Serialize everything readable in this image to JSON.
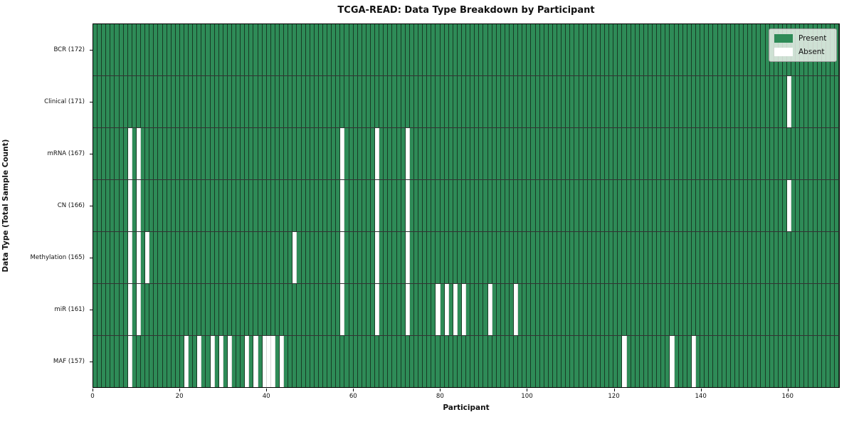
{
  "title": "TCGA-READ: Data Type Breakdown by Participant",
  "x_axis": {
    "label": "Participant",
    "ticks": [
      0,
      20,
      40,
      60,
      80,
      100,
      120,
      140,
      160
    ],
    "range": [
      0,
      172
    ]
  },
  "y_axis": {
    "label": "Data Type (Total Sample Count)"
  },
  "legend": {
    "entries": [
      {
        "label": "Present",
        "color_key": "present"
      },
      {
        "label": "Absent",
        "color_key": "absent"
      }
    ]
  },
  "colors": {
    "present": "#2e8b57",
    "absent": "#ffffff",
    "cell_edge": "rgba(20,45,28,0.85)",
    "absent_edge": "#d8d8d8",
    "row_divider": "rgba(0,0,0,0.8)",
    "plot_border": "#000000",
    "legend_bg": "rgba(234,240,234,0.85)",
    "legend_border": "#9a9a9a"
  },
  "chart_data": {
    "type": "heatmap",
    "n_participants": 172,
    "x_range": [
      0,
      172
    ],
    "legend_position": "upper right",
    "grid": "cell-edges",
    "cell_states": {
      "present": 1,
      "absent": 0
    },
    "rows": [
      {
        "label": "BCR (172)",
        "data_type": "BCR",
        "total_samples": 172,
        "absent_participants": []
      },
      {
        "label": "Clinical (171)",
        "data_type": "Clinical",
        "total_samples": 171,
        "absent_participants": [
          160
        ]
      },
      {
        "label": "mRNA (167)",
        "data_type": "mRNA",
        "total_samples": 167,
        "absent_participants": [
          8,
          10,
          57,
          65,
          72
        ]
      },
      {
        "label": "CN (166)",
        "data_type": "CN",
        "total_samples": 166,
        "absent_participants": [
          8,
          10,
          57,
          65,
          72,
          160
        ]
      },
      {
        "label": "Methylation (165)",
        "data_type": "Methylation",
        "total_samples": 165,
        "absent_participants": [
          8,
          10,
          12,
          46,
          57,
          65,
          72
        ]
      },
      {
        "label": "miR (161)",
        "data_type": "miR",
        "total_samples": 161,
        "absent_participants": [
          8,
          10,
          57,
          65,
          72,
          79,
          81,
          83,
          85,
          91,
          97
        ]
      },
      {
        "label": "MAF (157)",
        "data_type": "MAF",
        "total_samples": 157,
        "absent_participants": [
          8,
          21,
          24,
          27,
          29,
          31,
          35,
          37,
          39,
          40,
          41,
          43,
          122,
          133,
          138
        ]
      }
    ]
  }
}
